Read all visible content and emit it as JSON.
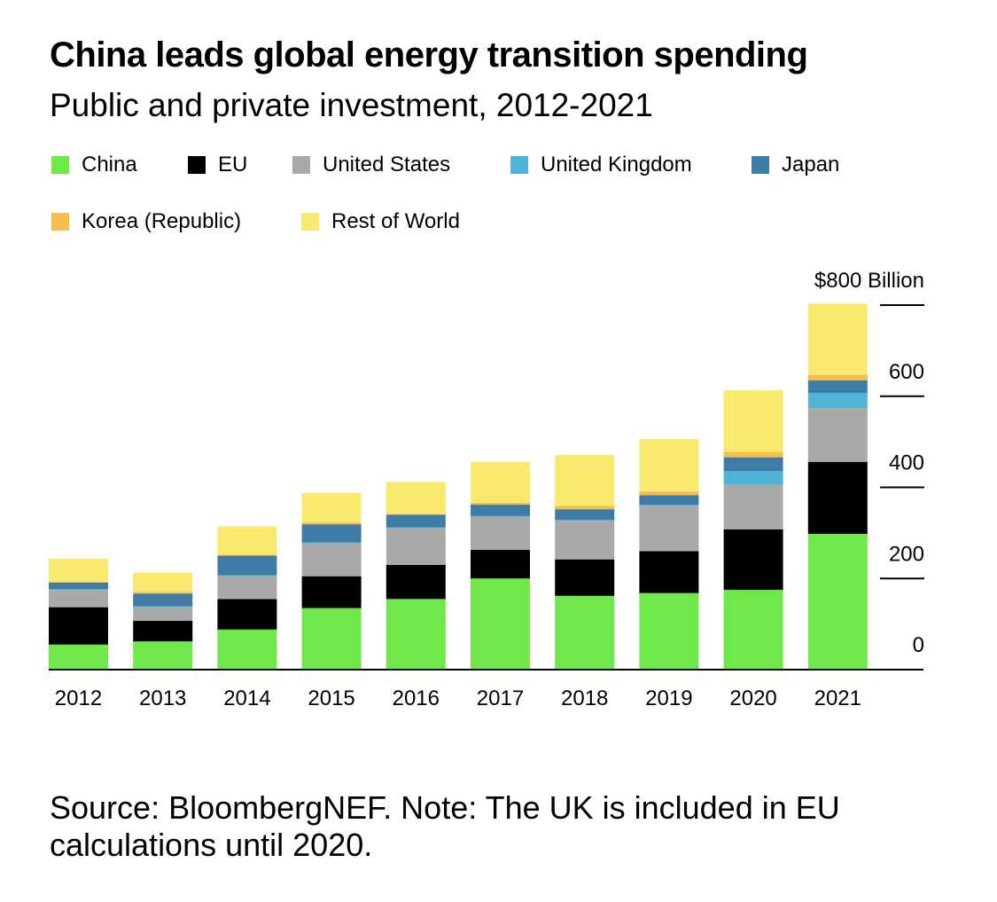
{
  "title": "China leads global energy transition spending",
  "subtitle": "Public and private investment, 2012-2021",
  "source": "Source: BloombergNEF. Note: The UK is included in EU calculations until 2020.",
  "chart_data": {
    "type": "bar",
    "stacked": true,
    "title": "China leads global energy transition spending",
    "subtitle": "Public and private investment, 2012-2021",
    "xlabel": "",
    "ylabel": "",
    "y_unit_label": "$800 Billion",
    "ylim": [
      0,
      800
    ],
    "yticks": [
      0,
      200,
      400,
      600,
      800
    ],
    "ytick_labels": [
      "0",
      "200",
      "400",
      "600",
      "$800 Billion"
    ],
    "y_axis_position": "right",
    "legend_position": "top",
    "grid": false,
    "categories": [
      "2012",
      "2013",
      "2014",
      "2015",
      "2016",
      "2017",
      "2018",
      "2019",
      "2020",
      "2021"
    ],
    "series": [
      {
        "name": "China",
        "color": "#6fe84b",
        "values": [
          55,
          62,
          88,
          135,
          155,
          200,
          162,
          168,
          175,
          298
        ]
      },
      {
        "name": "EU",
        "color": "#000000",
        "values": [
          82,
          45,
          67,
          70,
          75,
          63,
          80,
          92,
          133,
          158
        ]
      },
      {
        "name": "United States",
        "color": "#a9a9a9",
        "values": [
          38,
          30,
          50,
          72,
          80,
          72,
          85,
          100,
          98,
          118
        ]
      },
      {
        "name": "United Kingdom",
        "color": "#4fb3d6",
        "values": [
          2,
          2,
          2,
          2,
          2,
          2,
          2,
          2,
          30,
          33
        ]
      },
      {
        "name": "Japan",
        "color": "#3e7ca6",
        "values": [
          14,
          28,
          43,
          40,
          28,
          25,
          23,
          21,
          30,
          28
        ]
      },
      {
        "name": "Korea (Republic)",
        "color": "#f4bd4c",
        "values": [
          2,
          4,
          2,
          4,
          2,
          4,
          7,
          8,
          12,
          12
        ]
      },
      {
        "name": "Rest of World",
        "color": "#f9e96e",
        "values": [
          50,
          42,
          62,
          65,
          70,
          90,
          112,
          115,
          135,
          156
        ]
      }
    ]
  }
}
